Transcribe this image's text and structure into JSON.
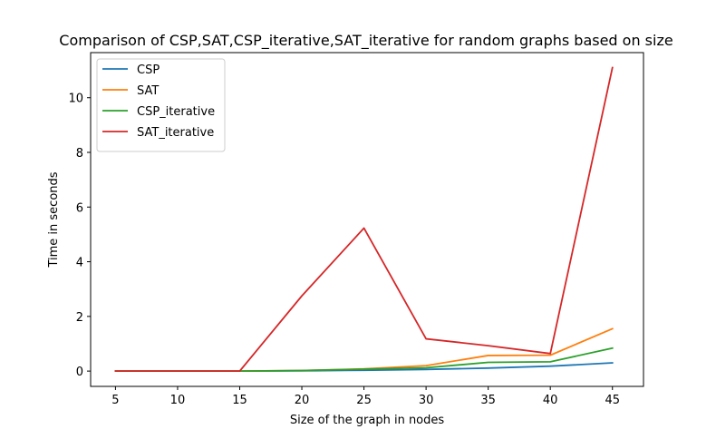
{
  "chart_data": {
    "type": "line",
    "title": "Comparison of CSP,SAT,CSP_iterative,SAT_iterative for random graphs based on size",
    "xlabel": "Size of the graph in nodes",
    "ylabel": "Time in seconds",
    "x": [
      5,
      10,
      15,
      20,
      25,
      30,
      35,
      40,
      45
    ],
    "xlim": [
      3,
      47.5
    ],
    "ylim": [
      -0.56,
      11.65
    ],
    "xticks": [
      5,
      10,
      15,
      20,
      25,
      30,
      35,
      40,
      45
    ],
    "yticks": [
      0,
      2,
      4,
      6,
      8,
      10
    ],
    "grid": false,
    "legend_position": "top-left",
    "series": [
      {
        "name": "CSP",
        "color": "#1f77b4",
        "values": [
          0.0,
          0.0,
          0.0,
          0.01,
          0.03,
          0.06,
          0.11,
          0.18,
          0.3
        ]
      },
      {
        "name": "SAT",
        "color": "#ff7f0e",
        "values": [
          0.0,
          0.0,
          0.0,
          0.02,
          0.08,
          0.2,
          0.57,
          0.58,
          1.55
        ]
      },
      {
        "name": "CSP_iterative",
        "color": "#2ca02c",
        "values": [
          0.0,
          0.0,
          0.0,
          0.02,
          0.07,
          0.12,
          0.32,
          0.34,
          0.84
        ]
      },
      {
        "name": "SAT_iterative",
        "color": "#d62728",
        "values": [
          0.0,
          0.0,
          0.0,
          2.75,
          5.23,
          1.18,
          0.93,
          0.64,
          11.1
        ]
      }
    ]
  }
}
